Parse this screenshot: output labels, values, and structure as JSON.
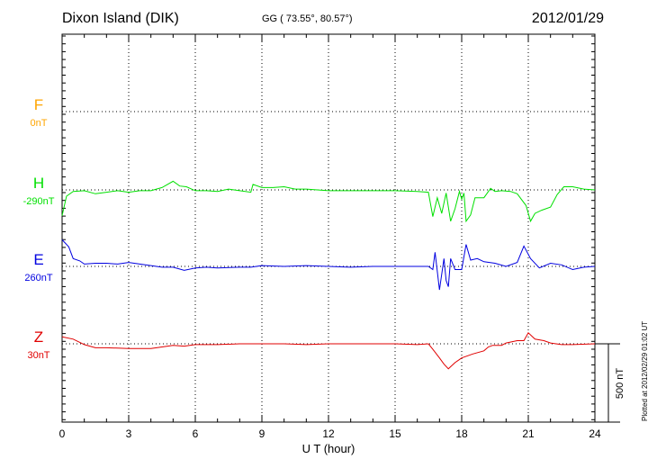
{
  "header": {
    "station": "Dixon Island (DIK)",
    "coords": "GG ( 73.55°,  80.57°)",
    "date": "2012/01/29"
  },
  "footer_stamp": "Plotted at 2012/02/29 01:02 UT",
  "chart_data": {
    "type": "line",
    "xlabel": "U T (hour)",
    "xlim": [
      0,
      24
    ],
    "xticks": [
      "0",
      "3",
      "6",
      "9",
      "12",
      "15",
      "18",
      "21",
      "24"
    ],
    "scale_bar_label": "500 nT",
    "colors": {
      "F": "#ffa500",
      "H": "#00e000",
      "E": "#0000e0",
      "Z": "#e00000"
    },
    "series": [
      {
        "name": "F",
        "baseline_label": "0nT",
        "data": []
      },
      {
        "name": "H",
        "baseline_label": "-290nT",
        "data": [
          [
            0,
            -165
          ],
          [
            0.2,
            -40
          ],
          [
            0.5,
            -10
          ],
          [
            1,
            -5
          ],
          [
            1.5,
            -25
          ],
          [
            2,
            -15
          ],
          [
            2.5,
            -5
          ],
          [
            3,
            -15
          ],
          [
            3.5,
            -5
          ],
          [
            4,
            -5
          ],
          [
            4.5,
            15
          ],
          [
            5,
            55
          ],
          [
            5.3,
            25
          ],
          [
            5.6,
            20
          ],
          [
            6,
            -5
          ],
          [
            6.5,
            -5
          ],
          [
            7,
            -10
          ],
          [
            7.5,
            5
          ],
          [
            8,
            -5
          ],
          [
            8.5,
            -15
          ],
          [
            8.6,
            35
          ],
          [
            9,
            15
          ],
          [
            9.5,
            15
          ],
          [
            10,
            20
          ],
          [
            10.5,
            5
          ],
          [
            11,
            5
          ],
          [
            12,
            -5
          ],
          [
            13,
            -5
          ],
          [
            14,
            -5
          ],
          [
            15,
            -5
          ],
          [
            16,
            -10
          ],
          [
            16.5,
            -15
          ],
          [
            16.7,
            -170
          ],
          [
            16.9,
            -50
          ],
          [
            17.1,
            -150
          ],
          [
            17.3,
            -20
          ],
          [
            17.5,
            -200
          ],
          [
            17.7,
            -120
          ],
          [
            17.9,
            -10
          ],
          [
            18,
            -60
          ],
          [
            18.1,
            -20
          ],
          [
            18.2,
            -200
          ],
          [
            18.4,
            -160
          ],
          [
            18.6,
            -50
          ],
          [
            19,
            -50
          ],
          [
            19.3,
            10
          ],
          [
            19.5,
            -10
          ],
          [
            19.8,
            -5
          ],
          [
            20.2,
            -10
          ],
          [
            20.5,
            -25
          ],
          [
            20.9,
            -100
          ],
          [
            21.1,
            -200
          ],
          [
            21.3,
            -150
          ],
          [
            21.6,
            -130
          ],
          [
            22,
            -110
          ],
          [
            22.3,
            -30
          ],
          [
            22.6,
            20
          ],
          [
            23,
            20
          ],
          [
            23.5,
            5
          ],
          [
            24,
            0
          ]
        ]
      },
      {
        "name": "E",
        "baseline_label": "260nT",
        "data": [
          [
            0,
            170
          ],
          [
            0.3,
            125
          ],
          [
            0.5,
            50
          ],
          [
            0.8,
            35
          ],
          [
            1,
            15
          ],
          [
            1.5,
            20
          ],
          [
            2,
            20
          ],
          [
            2.5,
            15
          ],
          [
            3,
            25
          ],
          [
            3.5,
            15
          ],
          [
            4,
            5
          ],
          [
            4.5,
            -5
          ],
          [
            5,
            -5
          ],
          [
            5.5,
            -25
          ],
          [
            6,
            -10
          ],
          [
            6.5,
            -5
          ],
          [
            7,
            -10
          ],
          [
            8,
            -5
          ],
          [
            8.5,
            -5
          ],
          [
            9,
            5
          ],
          [
            10,
            0
          ],
          [
            11,
            5
          ],
          [
            12,
            0
          ],
          [
            13,
            -5
          ],
          [
            14,
            0
          ],
          [
            15,
            0
          ],
          [
            16,
            0
          ],
          [
            16.5,
            0
          ],
          [
            16.7,
            -20
          ],
          [
            16.8,
            90
          ],
          [
            17,
            -150
          ],
          [
            17.2,
            50
          ],
          [
            17.3,
            -90
          ],
          [
            17.4,
            -130
          ],
          [
            17.5,
            50
          ],
          [
            17.7,
            -20
          ],
          [
            18,
            -20
          ],
          [
            18.2,
            140
          ],
          [
            18.4,
            40
          ],
          [
            18.7,
            50
          ],
          [
            19,
            30
          ],
          [
            19.5,
            20
          ],
          [
            20,
            0
          ],
          [
            20.5,
            25
          ],
          [
            20.8,
            130
          ],
          [
            21.1,
            50
          ],
          [
            21.5,
            -10
          ],
          [
            22,
            20
          ],
          [
            22.5,
            10
          ],
          [
            23,
            -20
          ],
          [
            23.5,
            -5
          ],
          [
            24,
            0
          ]
        ]
      },
      {
        "name": "Z",
        "baseline_label": "30nT",
        "data": [
          [
            0,
            45
          ],
          [
            0.5,
            30
          ],
          [
            1,
            -5
          ],
          [
            1.5,
            -25
          ],
          [
            2,
            -25
          ],
          [
            3,
            -30
          ],
          [
            3.5,
            -30
          ],
          [
            4,
            -30
          ],
          [
            4.5,
            -20
          ],
          [
            5,
            -10
          ],
          [
            5.5,
            -15
          ],
          [
            6,
            -5
          ],
          [
            7,
            -5
          ],
          [
            8,
            0
          ],
          [
            9,
            0
          ],
          [
            10,
            0
          ],
          [
            11,
            -5
          ],
          [
            12,
            0
          ],
          [
            13,
            0
          ],
          [
            14,
            0
          ],
          [
            15,
            0
          ],
          [
            16,
            -5
          ],
          [
            16.5,
            0
          ],
          [
            16.7,
            -35
          ],
          [
            17,
            -90
          ],
          [
            17.2,
            -130
          ],
          [
            17.4,
            -160
          ],
          [
            17.7,
            -120
          ],
          [
            18,
            -90
          ],
          [
            18.5,
            -65
          ],
          [
            19,
            -45
          ],
          [
            19.2,
            -20
          ],
          [
            19.4,
            -10
          ],
          [
            19.6,
            -10
          ],
          [
            19.8,
            -10
          ],
          [
            20,
            5
          ],
          [
            20.5,
            20
          ],
          [
            20.8,
            20
          ],
          [
            21,
            70
          ],
          [
            21.3,
            30
          ],
          [
            21.7,
            20
          ],
          [
            22,
            5
          ],
          [
            22.5,
            -5
          ],
          [
            23,
            -5
          ],
          [
            24,
            0
          ]
        ]
      }
    ]
  }
}
